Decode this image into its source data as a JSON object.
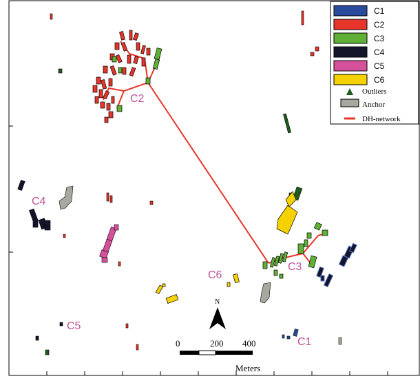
{
  "legend": {
    "items": [
      {
        "label": "C1",
        "color": "#2a4b9b"
      },
      {
        "label": "C2",
        "color": "#e8352a"
      },
      {
        "label": "C3",
        "color": "#5fb034"
      },
      {
        "label": "C4",
        "color": "#14142a"
      },
      {
        "label": "C5",
        "color": "#d4509a"
      },
      {
        "label": "C6",
        "color": "#f5d100"
      }
    ],
    "outliers_label": "Outliers",
    "outliers_color": "#1f5a1f",
    "anchor_label": "Anchor",
    "anchor_color": "#a8a8a0",
    "network_label": "DH-network",
    "network_color": "#e8352a"
  },
  "cluster_labels": {
    "c1": "C1",
    "c2": "C2",
    "c3": "C3",
    "c4": "C4",
    "c5": "C5",
    "c6": "C6",
    "color": "#c0509a"
  },
  "north_arrow": {
    "label": "N"
  },
  "scale_bar": {
    "tick_0": "0",
    "tick_200": "200",
    "tick_400": "400",
    "unit": "Meters"
  }
}
